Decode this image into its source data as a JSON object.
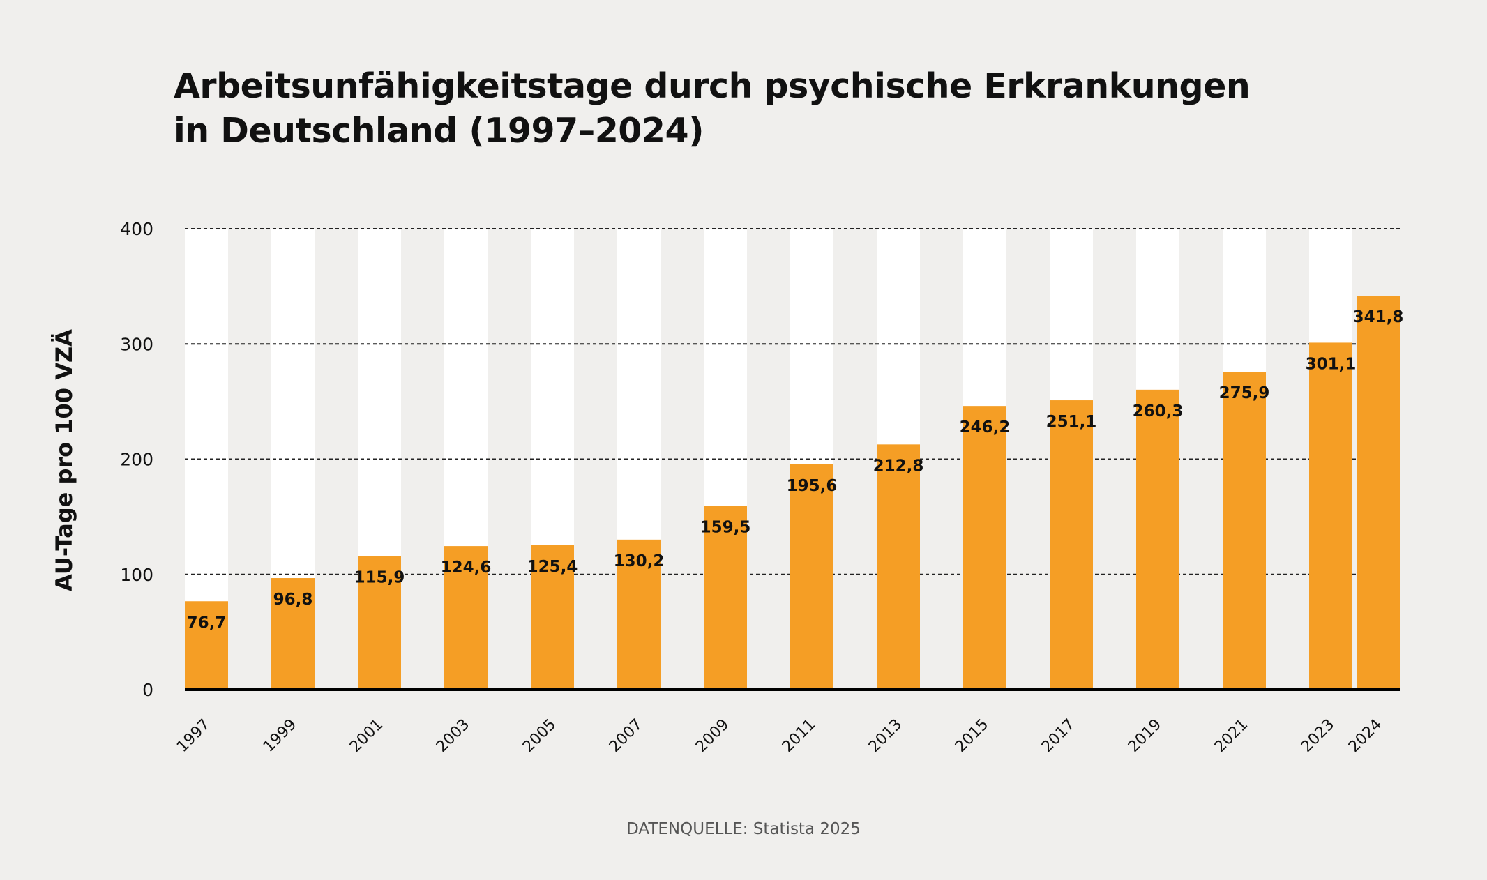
{
  "chart_data": {
    "type": "bar",
    "title_lines": [
      "Arbeitsunfähigkeitstage durch psychische Erkrankungen",
      "in Deutschland (1997–2024)"
    ],
    "xlabel": "",
    "ylabel": "AU-Tage pro 100 VZÄ",
    "ylim": [
      0,
      400
    ],
    "yticks": [
      "0",
      "100",
      "200",
      "300",
      "400"
    ],
    "grid": true,
    "categories": [
      "1997",
      "1999",
      "2001",
      "2003",
      "2005",
      "2007",
      "2009",
      "2011",
      "2013",
      "2015",
      "2017",
      "2019",
      "2021",
      "2023",
      "2024"
    ],
    "values": [
      76.7,
      96.8,
      115.9,
      124.6,
      125.4,
      130.2,
      159.5,
      195.6,
      212.8,
      246.2,
      251.1,
      260.3,
      275.9,
      301.1,
      341.8
    ],
    "data_labels": [
      "76,7",
      "96,8",
      "115,9",
      "124,6",
      "125,4",
      "130,2",
      "159,5",
      "195,6",
      "212,8",
      "246,2",
      "251,1",
      "260,3",
      "275,9",
      "301,1",
      "341,8"
    ],
    "bar_color": "#f59e25",
    "background_column_color": "#ffffff"
  },
  "source": "DATENQUELLE: Statista 2025"
}
